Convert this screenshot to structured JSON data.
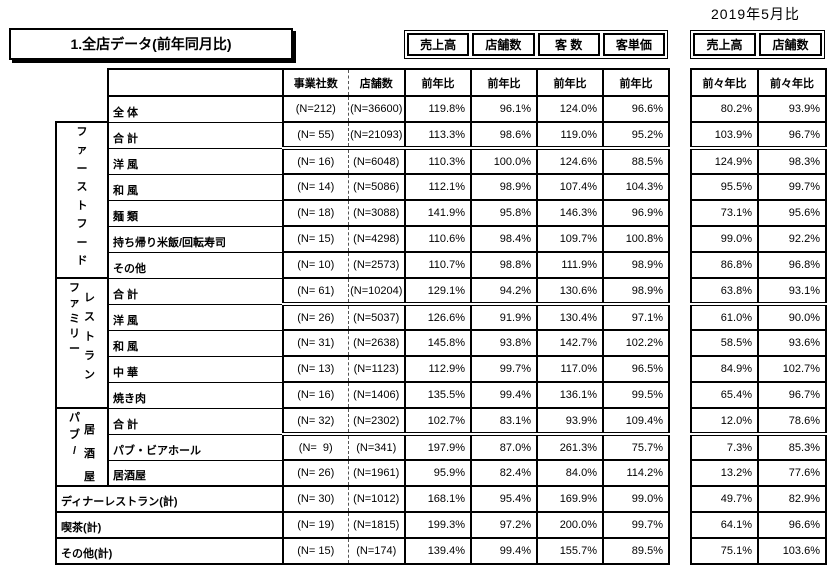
{
  "page": {
    "date_note": "2019年5月比",
    "title": "1.全店データ(前年同月比)"
  },
  "metric_header_boxes": {
    "main": [
      "売上高",
      "店舗数",
      "客 数",
      "客単価"
    ],
    "right": [
      "売上高",
      "店舗数"
    ]
  },
  "table": {
    "headers": {
      "companies": "事業社数",
      "stores": "店舗数",
      "yoy": "前年比",
      "yo2y": "前々年比"
    },
    "metric_keys": [
      "sales",
      "stores",
      "customers",
      "unit-price"
    ],
    "groups": [
      {
        "name": "ファーストフード",
        "columns": [
          "ファーストフード"
        ],
        "rows": 6
      },
      {
        "name": "ファミリーレストラン",
        "columns": [
          "ファミリー",
          "レストラン"
        ],
        "rows": 5
      },
      {
        "name": "パブ/居酒屋",
        "columns": [
          "パブ/",
          "居酒屋"
        ],
        "rows": 3
      }
    ],
    "rows": [
      {
        "label": "全 体",
        "type": "plain",
        "n_companies": "(N=212)",
        "n_stores": "(N=36600)",
        "yoy": [
          "119.8%",
          "96.1%",
          "124.0%",
          "96.6%"
        ],
        "yo2y": [
          "80.2%",
          "93.9%"
        ],
        "double_bottom": false
      },
      {
        "label": "合 計",
        "type": "grouped",
        "group": 0,
        "group_start": true,
        "n_companies": "(N= 55)",
        "n_stores": "(N=21093)",
        "yoy": [
          "113.3%",
          "98.6%",
          "119.0%",
          "95.2%"
        ],
        "yo2y": [
          "103.9%",
          "96.7%"
        ],
        "double_bottom": true
      },
      {
        "label": "洋 風",
        "type": "grouped",
        "n_companies": "(N= 16)",
        "n_stores": "(N=6048)",
        "yoy": [
          "110.3%",
          "100.0%",
          "124.6%",
          "88.5%"
        ],
        "yo2y": [
          "124.9%",
          "98.3%"
        ],
        "double_bottom": false
      },
      {
        "label": "和 風",
        "type": "grouped",
        "n_companies": "(N= 14)",
        "n_stores": "(N=5086)",
        "yoy": [
          "112.1%",
          "98.9%",
          "107.4%",
          "104.3%"
        ],
        "yo2y": [
          "95.5%",
          "99.7%"
        ],
        "double_bottom": false
      },
      {
        "label": "麺 類",
        "type": "grouped",
        "n_companies": "(N= 18)",
        "n_stores": "(N=3088)",
        "yoy": [
          "141.9%",
          "95.8%",
          "146.3%",
          "96.9%"
        ],
        "yo2y": [
          "73.1%",
          "95.6%"
        ],
        "double_bottom": false
      },
      {
        "label": "持ち帰り米飯/回転寿司",
        "type": "grouped",
        "n_companies": "(N= 15)",
        "n_stores": "(N=4298)",
        "yoy": [
          "110.6%",
          "98.4%",
          "109.7%",
          "100.8%"
        ],
        "yo2y": [
          "99.0%",
          "92.2%"
        ],
        "double_bottom": false
      },
      {
        "label": "その他",
        "type": "grouped",
        "n_companies": "(N= 10)",
        "n_stores": "(N=2573)",
        "yoy": [
          "110.7%",
          "98.8%",
          "111.9%",
          "98.9%"
        ],
        "yo2y": [
          "86.8%",
          "96.8%"
        ],
        "double_bottom": false
      },
      {
        "label": "合 計",
        "type": "grouped",
        "group": 1,
        "group_start": true,
        "n_companies": "(N= 61)",
        "n_stores": "(N=10204)",
        "yoy": [
          "129.1%",
          "94.2%",
          "130.6%",
          "98.9%"
        ],
        "yo2y": [
          "63.8%",
          "93.1%"
        ],
        "double_bottom": true
      },
      {
        "label": "洋 風",
        "type": "grouped",
        "n_companies": "(N= 26)",
        "n_stores": "(N=5037)",
        "yoy": [
          "126.6%",
          "91.9%",
          "130.4%",
          "97.1%"
        ],
        "yo2y": [
          "61.0%",
          "90.0%"
        ],
        "double_bottom": false
      },
      {
        "label": "和 風",
        "type": "grouped",
        "n_companies": "(N= 31)",
        "n_stores": "(N=2638)",
        "yoy": [
          "145.8%",
          "93.8%",
          "142.7%",
          "102.2%"
        ],
        "yo2y": [
          "58.5%",
          "93.6%"
        ],
        "double_bottom": false
      },
      {
        "label": "中 華",
        "type": "grouped",
        "n_companies": "(N= 13)",
        "n_stores": "(N=1123)",
        "yoy": [
          "112.9%",
          "99.7%",
          "117.0%",
          "96.5%"
        ],
        "yo2y": [
          "84.9%",
          "102.7%"
        ],
        "double_bottom": false
      },
      {
        "label": "焼き肉",
        "type": "grouped",
        "n_companies": "(N= 16)",
        "n_stores": "(N=1406)",
        "yoy": [
          "135.5%",
          "99.4%",
          "136.1%",
          "99.5%"
        ],
        "yo2y": [
          "65.4%",
          "96.7%"
        ],
        "double_bottom": false
      },
      {
        "label": "合 計",
        "type": "grouped",
        "group": 2,
        "group_start": true,
        "n_companies": "(N= 32)",
        "n_stores": "(N=2302)",
        "yoy": [
          "102.7%",
          "83.1%",
          "93.9%",
          "109.4%"
        ],
        "yo2y": [
          "12.0%",
          "78.6%"
        ],
        "double_bottom": true
      },
      {
        "label": "パブ・ビアホール",
        "type": "grouped",
        "n_companies": "(N=  9)",
        "n_stores": "(N=341)",
        "yoy": [
          "197.9%",
          "87.0%",
          "261.3%",
          "75.7%"
        ],
        "yo2y": [
          "7.3%",
          "85.3%"
        ],
        "double_bottom": false
      },
      {
        "label": "居酒屋",
        "type": "grouped",
        "n_companies": "(N= 26)",
        "n_stores": "(N=1961)",
        "yoy": [
          "95.9%",
          "82.4%",
          "84.0%",
          "114.2%"
        ],
        "yo2y": [
          "13.2%",
          "77.6%"
        ],
        "double_bottom": false
      },
      {
        "label": "ディナーレストラン(計)",
        "type": "wide",
        "n_companies": "(N= 30)",
        "n_stores": "(N=1012)",
        "yoy": [
          "168.1%",
          "95.4%",
          "169.9%",
          "99.0%"
        ],
        "yo2y": [
          "49.7%",
          "82.9%"
        ],
        "double_bottom": false
      },
      {
        "label": "喫茶(計)",
        "type": "wide",
        "n_companies": "(N= 19)",
        "n_stores": "(N=1815)",
        "yoy": [
          "199.3%",
          "97.2%",
          "200.0%",
          "99.7%"
        ],
        "yo2y": [
          "64.1%",
          "96.6%"
        ],
        "double_bottom": false
      },
      {
        "label": "その他(計)",
        "type": "wide",
        "n_companies": "(N= 15)",
        "n_stores": "(N=174)",
        "yoy": [
          "139.4%",
          "99.4%",
          "155.7%",
          "89.5%"
        ],
        "yo2y": [
          "75.1%",
          "103.6%"
        ],
        "double_bottom": false
      }
    ]
  }
}
